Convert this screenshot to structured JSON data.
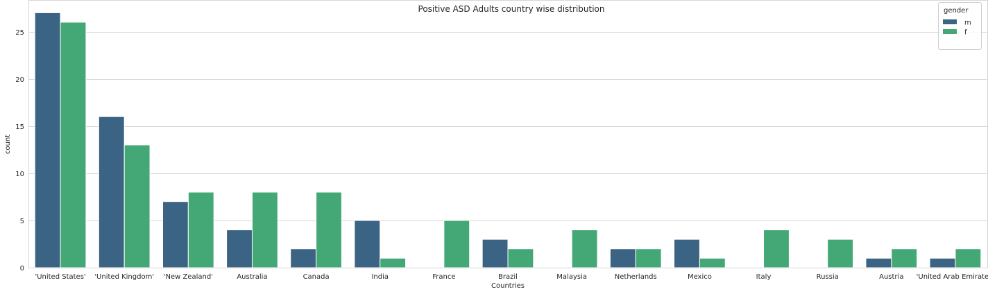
{
  "chart_data": {
    "type": "bar",
    "title": "Positive ASD Adults country wise distribution",
    "xlabel": "Countries",
    "ylabel": "count",
    "ylim": [
      0,
      28.35
    ],
    "yticks": [
      0,
      5,
      10,
      15,
      20,
      25
    ],
    "grid": true,
    "legend": {
      "title": "gender",
      "position": "top-right"
    },
    "categories": [
      "'United States'",
      "'United Kingdom'",
      "'New Zealand'",
      "Australia",
      "Canada",
      "India",
      "France",
      "Brazil",
      "Malaysia",
      "Netherlands",
      "Mexico",
      "Italy",
      "Russia",
      "Austria",
      "'United Arab Emirates'"
    ],
    "series": [
      {
        "name": "m",
        "color": "#3b6384",
        "values": [
          27,
          16,
          7,
          4,
          2,
          5,
          0,
          3,
          0,
          2,
          3,
          0,
          0,
          1,
          1
        ]
      },
      {
        "name": "f",
        "color": "#43a876",
        "values": [
          26,
          13,
          8,
          8,
          8,
          1,
          5,
          2,
          4,
          2,
          1,
          4,
          3,
          2,
          2
        ]
      }
    ]
  }
}
